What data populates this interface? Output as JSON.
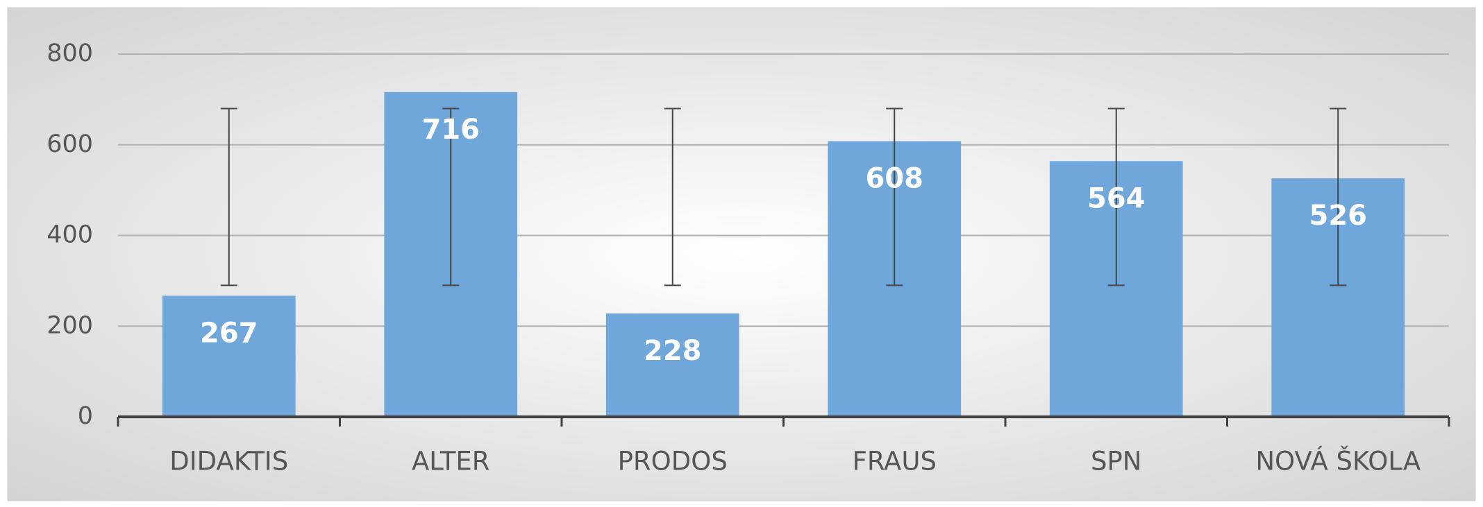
{
  "chart_data": {
    "type": "bar",
    "categories": [
      "DIDAKTIS",
      "ALTER",
      "PRODOS",
      "FRAUS",
      "SPN",
      "NOVÁ ŠKOLA"
    ],
    "values": [
      267,
      716,
      228,
      608,
      564,
      526
    ],
    "error_low": [
      290,
      290,
      290,
      290,
      290,
      290
    ],
    "error_high": [
      680,
      680,
      680,
      680,
      680,
      680
    ],
    "color": "#6fa7db",
    "ylim": [
      0,
      800
    ],
    "yticks": [
      0,
      200,
      400,
      600,
      800
    ],
    "grid": true
  }
}
